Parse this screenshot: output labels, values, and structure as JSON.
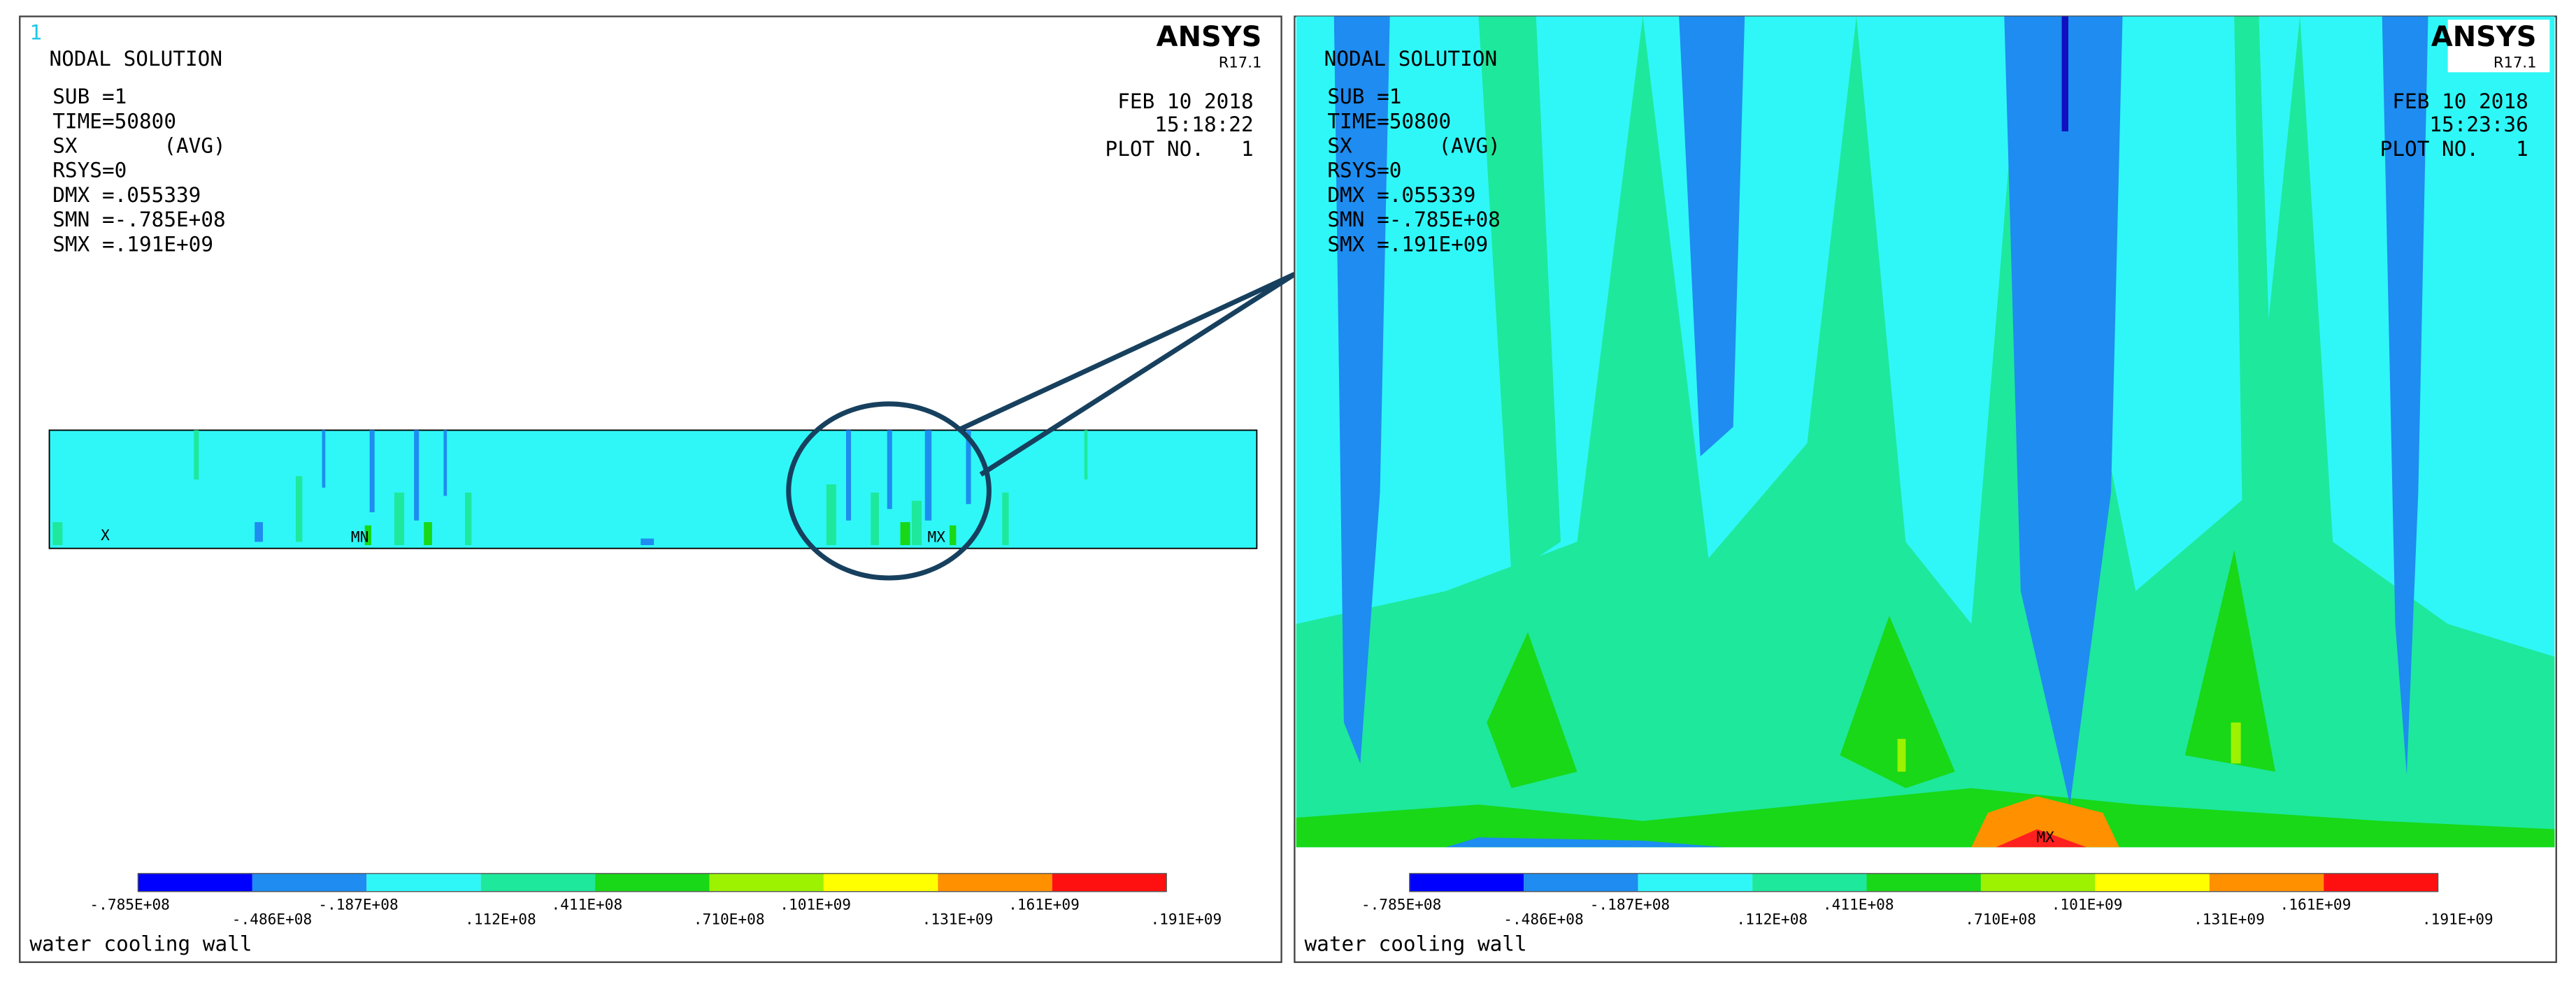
{
  "panels": [
    {
      "frame_number": "1",
      "logo": "ANSYS",
      "version": "R17.1",
      "title": "NODAL SOLUTION",
      "info": [
        "SUB =1",
        "TIME=50800",
        "SX       (AVG)",
        "RSYS=0",
        "DMX =.055339",
        "SMN =-.785E+08",
        "SMX =.191E+09"
      ],
      "date": "FEB 10 2018",
      "time": "15:18:22",
      "plot": "PLOT NO.   1",
      "markers": [
        "X",
        "MN",
        "MX"
      ],
      "legend": [
        "-.785E+08",
        "-.486E+08",
        "-.187E+08",
        ".112E+08",
        ".411E+08",
        ".710E+08",
        ".101E+09",
        ".131E+09",
        ".161E+09",
        ".191E+09"
      ],
      "caption": "water cooling wall"
    },
    {
      "logo": "ANSYS",
      "version": "R17.1",
      "title": "NODAL SOLUTION",
      "info": [
        "SUB =1",
        "TIME=50800",
        "SX       (AVG)",
        "RSYS=0",
        "DMX =.055339",
        "SMN =-.785E+08",
        "SMX =.191E+09"
      ],
      "date": "FEB 10 2018",
      "time": "15:23:36",
      "plot": "PLOT NO.   1",
      "markers": [
        "MX"
      ],
      "legend": [
        "-.785E+08",
        "-.486E+08",
        "-.187E+08",
        ".112E+08",
        ".411E+08",
        ".710E+08",
        ".101E+09",
        ".131E+09",
        ".161E+09",
        ".191E+09"
      ],
      "caption": "water cooling wall"
    }
  ]
}
